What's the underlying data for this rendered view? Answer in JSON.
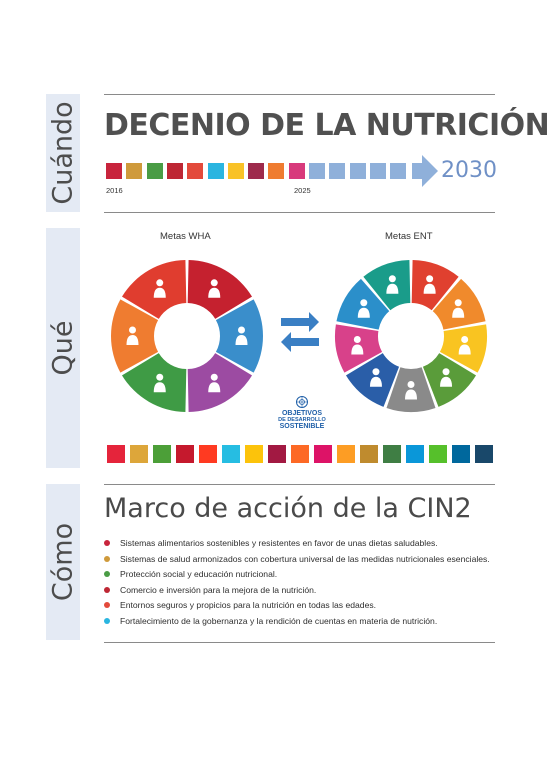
{
  "sections": {
    "cuando": "Cuándo",
    "que": "Qué",
    "como": "Cómo"
  },
  "decade": {
    "title": "DECENIO DE LA NUTRICIÓN",
    "start_year": "2016",
    "mid_year": "2025",
    "end_year": "2030",
    "block_colors": [
      "#c8243c",
      "#cf9a3b",
      "#4a9c45",
      "#be2734",
      "#e34a3b",
      "#2ab5e0",
      "#f9c227",
      "#9e2a4c",
      "#ef7c30",
      "#d83a7c",
      "#8fb0da",
      "#8fb0da",
      "#8fb0da",
      "#8fb0da",
      "#8fb0da"
    ],
    "arrow_color": "#8fb0da"
  },
  "wha": {
    "label": "Metas WHA",
    "segment_colors": [
      "#c5212f",
      "#3a8ecb",
      "#9c4ba2",
      "#3f9b45",
      "#ef7c30",
      "#e03d2f"
    ],
    "icons": [
      "drop-icon",
      "mother-baby-icon",
      "children-icon",
      "breastfeeding-icon",
      "children-pair-icon",
      "children-group-icon"
    ]
  },
  "ent": {
    "label": "Metas ENT",
    "segment_colors": [
      "#e0402f",
      "#f08a2c",
      "#f9c421",
      "#5a9c3a",
      "#8a8a8a",
      "#2a5ea8",
      "#d8418a",
      "#2b8fca",
      "#1a9c8a"
    ],
    "icons": [
      "heart-monitor-icon",
      "bottles-icon",
      "hourglass-icon",
      "medicine-icon",
      "no-smoking-icon",
      "pills-icon",
      "blood-pressure-icon",
      "patient-bed-icon",
      "active-person-icon"
    ]
  },
  "ods_logo": {
    "title": "OBJETIVOS",
    "sub1": "DE DESARROLLO",
    "sub2": "SOSTENIBLE"
  },
  "sdg_colors": [
    "#e5243b",
    "#dda63a",
    "#4c9f38",
    "#c5192d",
    "#ff3a21",
    "#26bde2",
    "#fcc30b",
    "#a21942",
    "#fd6925",
    "#dd1367",
    "#fd9d24",
    "#bf8b2e",
    "#3f7e44",
    "#0a97d9",
    "#56c02b",
    "#00689d",
    "#19486a"
  ],
  "framework": {
    "title": "Marco de acción de la CIN2",
    "items": [
      {
        "text": "Sistemas alimentarios sostenibles y resistentes en favor de unas dietas saludables.",
        "color": "#c8243c"
      },
      {
        "text": "Sistemas de salud armonizados con cobertura universal de las medidas nutricionales esenciales.",
        "color": "#cf9a3b"
      },
      {
        "text": "Protección social y educación nutricional.",
        "color": "#4a9c45"
      },
      {
        "text": "Comercio e inversión para la mejora de la nutrición.",
        "color": "#be2734"
      },
      {
        "text": "Entornos seguros y propicios para la nutrición en todas las edades.",
        "color": "#e34a3b"
      },
      {
        "text": "Fortalecimiento de la gobernanza y la rendición de cuentas en materia de nutrición.",
        "color": "#2ab5e0"
      }
    ]
  }
}
